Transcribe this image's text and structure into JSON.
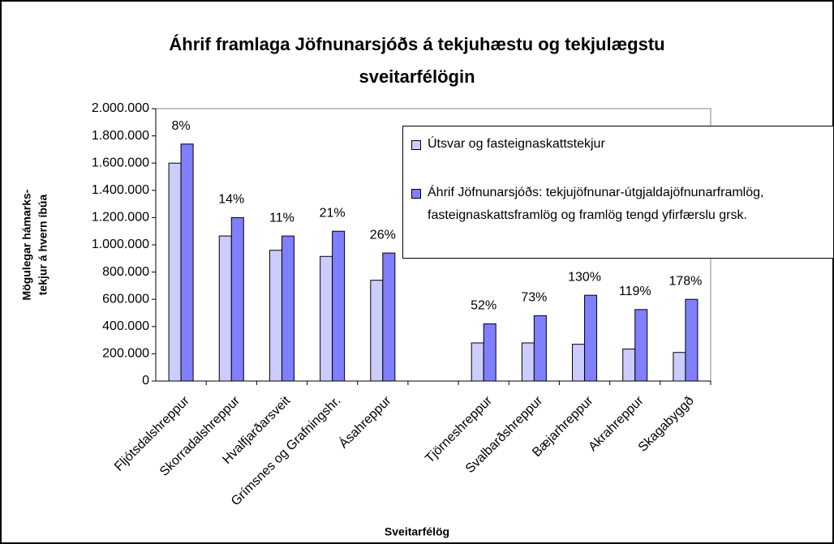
{
  "chart_data": {
    "type": "bar",
    "title": [
      "Áhrif framlaga Jöfnunarsjóðs á tekjuhæstu og tekjulægstu",
      "sveitarfélögin"
    ],
    "xlabel": "Sveitarfélög",
    "ylabel": [
      "Mögulegar hámarks-",
      "tekjur á hvern íbúa"
    ],
    "categories": [
      "Fljótsdalshreppur",
      "Skorradalshreppur",
      "Hvalfjarðarsveit",
      "Grímsnes og Grafningshr.",
      "Ásahreppur",
      null,
      "Tjörneshreppur",
      "Svalbarðshreppur",
      "Bæjarhreppur",
      "Akrahreppur",
      "Skagabyggð"
    ],
    "series": [
      {
        "name": "Útsvar og fasteignaskattstekjur",
        "color": "#ccccff",
        "values": [
          1600000,
          1065000,
          960000,
          915000,
          740000,
          null,
          280000,
          280000,
          270000,
          235000,
          210000
        ]
      },
      {
        "name": "Áhrif Jöfnunarsjóðs: tekjujöfnunar-útgjaldajöfnunarframlög, fasteignaskattsframlög og framlög tengd yfirfærslu grsk.",
        "color": "#7f7fff",
        "values": [
          1740000,
          1200000,
          1065000,
          1100000,
          940000,
          null,
          420000,
          480000,
          630000,
          525000,
          600000
        ]
      }
    ],
    "annotations": [
      "8%",
      "14%",
      "11%",
      "21%",
      "26%",
      null,
      "52%",
      "73%",
      "130%",
      "119%",
      "178%"
    ],
    "ylim": [
      0,
      2000000
    ],
    "yticks": [
      0,
      {
        "value": 200000,
        "label": "200.000"
      },
      {
        "value": 400000,
        "label": "400.000"
      },
      {
        "value": 600000,
        "label": "600.000"
      },
      {
        "value": 800000,
        "label": "800.000"
      },
      {
        "value": 1000000,
        "label": "1.000.000"
      },
      {
        "value": 1200000,
        "label": "1.200.000"
      },
      {
        "value": 1400000,
        "label": "1.400.000"
      },
      {
        "value": 1600000,
        "label": "1.600.000"
      },
      {
        "value": 1800000,
        "label": "1.800.000"
      },
      {
        "value": 2000000,
        "label": "2.000.000"
      }
    ],
    "grid": false,
    "legend": "top-right"
  }
}
